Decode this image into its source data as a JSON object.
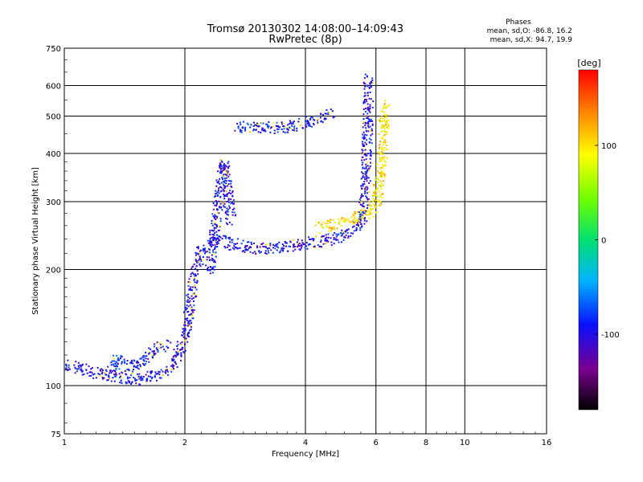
{
  "chart_data": {
    "type": "scatter",
    "title": "Tromsø 20130302 14:08:00–14:09:43",
    "subtitle": "RwPretec (8p)",
    "xlabel": "Frequency [MHz]",
    "ylabel": "Stationary phase Virtual Height [km]",
    "x_scale": "log",
    "y_scale": "log",
    "xlim": [
      1,
      16
    ],
    "ylim": [
      75,
      750
    ],
    "x_ticks": [
      1,
      2,
      4,
      6,
      8,
      10,
      16
    ],
    "x_tick_labels": [
      "1",
      "2",
      "4",
      "6",
      "8",
      "10",
      "16"
    ],
    "y_ticks": [
      75,
      100,
      200,
      300,
      400,
      500,
      600,
      750
    ],
    "y_tick_labels": [
      "75",
      "100",
      "200",
      "300",
      "400",
      "500",
      "600",
      "750"
    ],
    "grid": true,
    "stats": {
      "title": "Phases",
      "line1": "mean, sd,O: -86.8, 16.2",
      "line2": "mean, sd,X:  94.7, 19.9"
    },
    "colorbar": {
      "label": "[deg]",
      "range": [
        -180,
        180
      ],
      "ticks": [
        100,
        0,
        -100
      ],
      "tick_labels": [
        "100",
        "0",
        "-100"
      ]
    },
    "traces": [
      {
        "phase": -100,
        "points": [
          [
            1.0,
            113
          ],
          [
            1.05,
            113
          ],
          [
            1.1,
            111
          ],
          [
            1.2,
            108
          ],
          [
            1.35,
            106
          ],
          [
            1.5,
            104
          ],
          [
            1.65,
            106
          ],
          [
            1.8,
            110
          ],
          [
            1.9,
            118
          ],
          [
            2.0,
            135
          ],
          [
            2.05,
            160
          ],
          [
            2.1,
            195
          ],
          [
            2.2,
            225
          ],
          [
            2.4,
            240
          ],
          [
            2.7,
            232
          ],
          [
            3.0,
            228
          ],
          [
            3.5,
            230
          ],
          [
            4.0,
            234
          ],
          [
            4.5,
            240
          ],
          [
            5.0,
            246
          ],
          [
            5.3,
            255
          ],
          [
            5.5,
            270
          ],
          [
            5.6,
            310
          ],
          [
            5.65,
            380
          ],
          [
            5.7,
            470
          ],
          [
            5.72,
            560
          ],
          [
            5.73,
            630
          ]
        ]
      },
      {
        "phase": -100,
        "points": [
          [
            2.3,
            200
          ],
          [
            2.4,
            280
          ],
          [
            2.45,
            340
          ],
          [
            2.5,
            380
          ],
          [
            2.55,
            320
          ],
          [
            2.6,
            270
          ]
        ]
      },
      {
        "phase": -90,
        "points": [
          [
            2.7,
            470
          ],
          [
            3.0,
            470
          ],
          [
            3.3,
            468
          ],
          [
            3.6,
            470
          ],
          [
            4.0,
            480
          ],
          [
            4.3,
            495
          ],
          [
            4.6,
            510
          ]
        ]
      },
      {
        "phase": 100,
        "points": [
          [
            4.3,
            258
          ],
          [
            4.6,
            262
          ],
          [
            5.0,
            268
          ],
          [
            5.4,
            275
          ],
          [
            5.8,
            285
          ],
          [
            6.0,
            300
          ],
          [
            6.1,
            340
          ],
          [
            6.2,
            400
          ],
          [
            6.25,
            480
          ],
          [
            6.3,
            540
          ]
        ]
      },
      {
        "phase": -90,
        "points": [
          [
            1.3,
            110
          ],
          [
            1.35,
            118
          ],
          [
            1.4,
            112
          ],
          [
            1.55,
            115
          ],
          [
            1.7,
            125
          ],
          [
            1.8,
            130
          ]
        ]
      }
    ]
  }
}
